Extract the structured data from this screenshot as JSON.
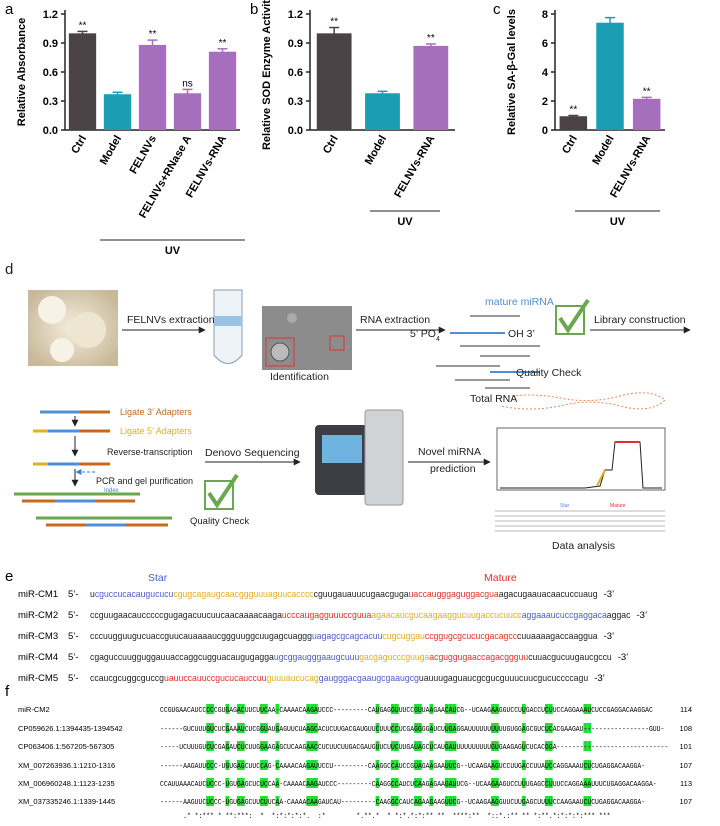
{
  "chart_data": [
    {
      "type": "bar",
      "panel_label": "a",
      "y_label": "Relative Absorbance",
      "categories": [
        "Ctrl",
        "Model",
        "FELNVs",
        "FELNVs+RNase A",
        "FELNVs-RNA"
      ],
      "values": [
        1.0,
        0.37,
        0.88,
        0.38,
        0.81
      ],
      "errors": [
        0.02,
        0.02,
        0.05,
        0.04,
        0.03
      ],
      "annotations": [
        "**",
        null,
        "**",
        "ns",
        "**"
      ],
      "colors": [
        "#4a4245",
        "#1b9db3",
        "#a56fbd",
        "#a56fbd",
        "#a56fbd"
      ],
      "ylim": [
        0,
        1.2
      ],
      "yticks": [
        {
          "value": 0,
          "label": "0.0"
        },
        0.3,
        0.6,
        0.9,
        1.2
      ],
      "group_label": "UV"
    },
    {
      "type": "bar",
      "panel_label": "b",
      "y_label": "Relative SOD Enzyme Activity",
      "categories": [
        "Ctrl",
        "Model",
        "FELNVs-RNA"
      ],
      "values": [
        1.0,
        0.38,
        0.87
      ],
      "errors": [
        0.06,
        0.02,
        0.02
      ],
      "annotations": [
        "**",
        null,
        "**"
      ],
      "colors": [
        "#4a4245",
        "#1b9db3",
        "#a56fbd"
      ],
      "ylim": [
        0,
        1.2
      ],
      "yticks": [
        {
          "value": 0,
          "label": "0.0"
        },
        0.3,
        0.6,
        0.9,
        1.2
      ],
      "group_label": "UV"
    },
    {
      "type": "bar",
      "panel_label": "c",
      "y_label": "Relative SA-β-Gal levels",
      "categories": [
        "Ctrl",
        "Model",
        "FELNVs-RNA"
      ],
      "values": [
        0.95,
        7.4,
        2.15
      ],
      "errors": [
        0.05,
        0.35,
        0.1
      ],
      "annotations": [
        "**",
        null,
        "**"
      ],
      "colors": [
        "#4a4245",
        "#1b9db3",
        "#a56fbd"
      ],
      "ylim": [
        0,
        8
      ],
      "yticks": [
        0,
        2,
        4,
        6,
        8
      ],
      "group_label": "UV"
    }
  ],
  "panel_d": {
    "label": "d",
    "extraction": "FELNVs extraction",
    "identification": "Identification",
    "rna_extraction": "RNA extraction",
    "mature_mirna": "mature miRNA",
    "five_prime": "5’ PO",
    "five_prime_sub": "4",
    "oh": "OH 3’",
    "quality_check_1": "Quality Check",
    "total_rna": "Total RNA",
    "library": "Library construction",
    "ligate3": "Ligate 3’  Adapters",
    "ligate5": "Ligate 5’  Adapters",
    "rt": "Reverse-transcription",
    "pcr": "PCR and gel purification",
    "index": "Index",
    "quality_check_2": "Quality Check",
    "denovo": "Denovo Sequencing",
    "novel1": "Novel miRNA",
    "novel2": "prediction",
    "data_analysis": "Data analysis",
    "star": "Star",
    "mature": "Mature"
  },
  "panel_e": {
    "label": "e",
    "star": "Star",
    "mature": "Mature",
    "five_prime": "5’-",
    "three_prime": "-3’",
    "rows": [
      {
        "name": "miR-CM1",
        "segments": [
          {
            "text": "u",
            "color": "#222222"
          },
          {
            "text": "cguccucacaugucucu",
            "color": "#4a5fc1"
          },
          {
            "text": "cgugcagaugcaacggguuuaguucacccc",
            "color": "#e3ae22"
          },
          {
            "text": "cguugauauucugaacguga",
            "color": "#222222"
          },
          {
            "text": "uaccaugggaguggacgua",
            "color": "#e0302a"
          },
          {
            "text": "agacugaauacaacuccuaug",
            "color": "#222222"
          }
        ]
      },
      {
        "name": "miR-CM2",
        "segments": [
          {
            "text": "ccguugaacaucccccgugagacuucuucaacaaaacaaga",
            "color": "#222222"
          },
          {
            "text": "ucccaugagguuuccguua",
            "color": "#e0302a"
          },
          {
            "text": "agaacaucgucaagaaggucuugaccucuucc",
            "color": "#e3ae22"
          },
          {
            "text": "aggaaaucuccgaggaca",
            "color": "#4a5fc1"
          },
          {
            "text": "aggac",
            "color": "#222222"
          }
        ]
      },
      {
        "name": "miR-CM3",
        "segments": [
          {
            "text": "cccuugguugucuaccguucauaaaaucggguuggcuugagcuaggg",
            "color": "#222222"
          },
          {
            "text": "uagagcgcagcacuu",
            "color": "#4a5fc1"
          },
          {
            "text": "cugcuggau",
            "color": "#e3ae22"
          },
          {
            "text": "ccggugcgcucucgacagcc",
            "color": "#e0302a"
          },
          {
            "text": "cuuaaaagaccaaggua",
            "color": "#222222"
          }
        ]
      },
      {
        "name": "miR-CM4",
        "segments": [
          {
            "text": "cgaguccuugguggauuaccaggcugguacaugugagga",
            "color": "#222222"
          },
          {
            "text": "ugcggaugggaaugcuuu",
            "color": "#4a5fc1"
          },
          {
            "text": "gacgagucccguuga",
            "color": "#e3ae22"
          },
          {
            "text": "acguggugaaccagacggguu",
            "color": "#e0302a"
          },
          {
            "text": "cuuacgucuugaucgccu",
            "color": "#222222"
          }
        ]
      },
      {
        "name": "miR-CM5",
        "segments": [
          {
            "text": "ccaucgcuggcguccg",
            "color": "#222222"
          },
          {
            "text": "uauuccauuccgucucauccuu",
            "color": "#e0302a"
          },
          {
            "text": "guuuaucucag",
            "color": "#e3ae22"
          },
          {
            "text": "gaugggacgaaugcgaaugcg",
            "color": "#4a5fc1"
          },
          {
            "text": "uauuugaguaucgcgucguuucuucgucuccccagu",
            "color": "#222222"
          }
        ]
      }
    ]
  },
  "panel_f": {
    "label": "f",
    "rows": [
      {
        "name": "miR-CM2",
        "sequence": "CCGUGAACAUCCCCCGUGAGACUUCUUCAA-CAAAACAAGAUCCC---------CAUGAGGUUUCCGUUAAGAACAUCG--UCAAGAAGGUCCUUGACCUCUUCCAGGAAAUCUCCGAGGACAAGGAC",
        "length": 114
      },
      {
        "name": "CP059626.1:1394435-1394542",
        "sequence": "------GUCUUUGUCUCGAAAUCUCGGUAUGAGUUCUAAGCACUCUUGACGAUGUUCUUUCCUCGAGGGGAUCUUGAGGAUUUUUUUUUUGUGGAGCGUCUCACGAAGAU-----------------GUU-",
        "length": 108
      },
      {
        "name": "CP063406.1:567205-567305",
        "sequence": "-----UCUUUGUCUCGAGAUCUCUUGGAAGAGCUCAAGAACCUCUUCUUGACGAUGUUCUUCUUGAUAGCUCAUGAUUUUUUUUUUGUGAAGAGUCUCACGGA-----------------------------",
        "length": 101
      },
      {
        "name": "XM_007263936.1:1210-1316",
        "sequence": "------AAGAUUCCC-UGUGAGCUUCCAG-CAAAACAAGAUUCCU---------CAAGGCCAUCCGUAGAAGAAUUCG--UCAAGAAGUCCUUGACCUUAUCCAGGAAAUCUCUGAGGACAAGGA-",
        "length": 107
      },
      {
        "name": "XM_006960248.1:1123-1235",
        "sequence": "CCAUUAAACAUCUCCC-UGUGAGCUCUCCAA-CAAAACAAGAUCCC---------CAAGGCCAUCUCAAGAGAAGAUUCG--UCAAGAAGUCCUUUGAGCCUUUCCAGGAAAUUUCUGAGGACAAGGA-",
        "length": 113
      },
      {
        "name": "XM_037335246.1:1339-1445",
        "sequence": "------AAGUUCUCCC-UGUGAGCUUCUUCAA-CAAAACAAGAUCAU---------CAAGGCCAUCAGAAGAAGUUCG--UCAAGAAGGUUCUUGAGCUUUUCCAAGAAUCUCUGAGGACAAGGA-",
        "length": 107
      }
    ],
    "consensus": "      .* *:*** * **:***:  *  *:*:*:*:*.  :*        *.**.*  * *:*.*:*:** **  ****:**  *::*.:** ** *:**.*:*:*:*:*** ***    "
  }
}
